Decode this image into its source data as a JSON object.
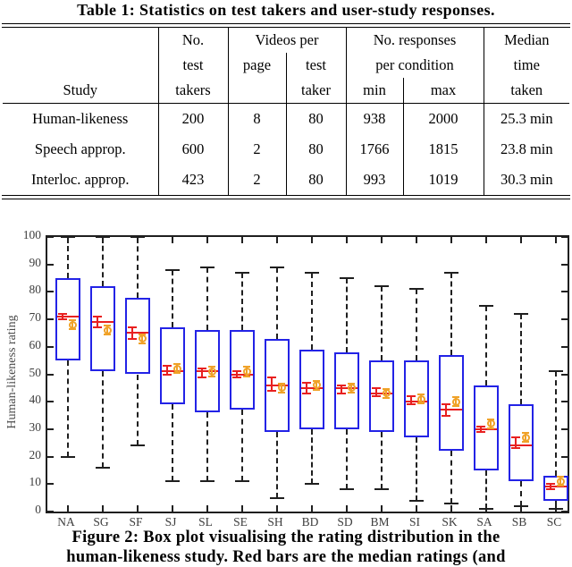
{
  "table": {
    "title": "Table 1: Statistics on test takers and user-study responses.",
    "header": {
      "study": "Study",
      "no_l1": "No.",
      "no_l2": "test",
      "no_l3": "takers",
      "videos_per": "Videos per",
      "page": "page",
      "test": "test",
      "taker": "taker",
      "resp_l1": "No. responses",
      "resp_l2": "per condition",
      "min": "min",
      "max": "max",
      "median_l1": "Median",
      "median_l2": "time",
      "median_l3": "taken"
    },
    "rows": [
      {
        "study": "Human-likeness",
        "takers": "200",
        "page": "8",
        "taker": "80",
        "min": "938",
        "max": "2000",
        "time": "25.3 min"
      },
      {
        "study": "Speech approp.",
        "takers": "600",
        "page": "2",
        "taker": "80",
        "min": "1766",
        "max": "1815",
        "time": "23.8 min"
      },
      {
        "study": "Interloc. approp.",
        "takers": "423",
        "page": "2",
        "taker": "80",
        "min": "993",
        "max": "1019",
        "time": "30.3 min"
      }
    ]
  },
  "figure_caption": {
    "line1": "Figure 2: Box plot visualising the rating distribution in the",
    "line2": "human-likeness study. Red bars are the median ratings (and"
  },
  "chart_data": {
    "type": "boxplot",
    "title": "",
    "xlabel": "",
    "ylabel": "Human-likeness rating",
    "ylim": [
      0,
      100
    ],
    "yticks": [
      0,
      10,
      20,
      30,
      40,
      50,
      60,
      70,
      80,
      90,
      100
    ],
    "grid": false,
    "legend": "none",
    "categories": [
      "NA",
      "SG",
      "SF",
      "SJ",
      "SL",
      "SE",
      "SH",
      "BD",
      "SD",
      "BM",
      "SI",
      "SK",
      "SA",
      "SB",
      "SC"
    ],
    "colors": {
      "box": "#2323e6",
      "median": "#e82020",
      "mean": "#f0a228",
      "whisker": "#1f1f1f"
    },
    "boxes": [
      {
        "label": "NA",
        "whisker_low": 20,
        "q1": 55,
        "median": 71,
        "median_ci": [
          70,
          72
        ],
        "q3": 85,
        "whisker_high": 100,
        "mean": 68,
        "mean_ci": [
          67,
          69
        ]
      },
      {
        "label": "SG",
        "whisker_low": 16,
        "q1": 51,
        "median": 69,
        "median_ci": [
          67,
          71
        ],
        "q3": 82,
        "whisker_high": 100,
        "mean": 66,
        "mean_ci": [
          65,
          67
        ]
      },
      {
        "label": "SF",
        "whisker_low": 24,
        "q1": 50,
        "median": 65,
        "median_ci": [
          63,
          67
        ],
        "q3": 78,
        "whisker_high": 100,
        "mean": 63,
        "mean_ci": [
          62,
          64
        ]
      },
      {
        "label": "SJ",
        "whisker_low": 11,
        "q1": 39,
        "median": 51,
        "median_ci": [
          50,
          53
        ],
        "q3": 67,
        "whisker_high": 88,
        "mean": 52,
        "mean_ci": [
          51,
          53
        ]
      },
      {
        "label": "SL",
        "whisker_low": 11,
        "q1": 36,
        "median": 51,
        "median_ci": [
          49,
          52
        ],
        "q3": 66,
        "whisker_high": 89,
        "mean": 51,
        "mean_ci": [
          50,
          52
        ]
      },
      {
        "label": "SE",
        "whisker_low": 11,
        "q1": 37,
        "median": 50,
        "median_ci": [
          49,
          51
        ],
        "q3": 66,
        "whisker_high": 87,
        "mean": 51,
        "mean_ci": [
          50,
          52
        ]
      },
      {
        "label": "SH",
        "whisker_low": 5,
        "q1": 29,
        "median": 46,
        "median_ci": [
          44,
          49
        ],
        "q3": 63,
        "whisker_high": 89,
        "mean": 45,
        "mean_ci": [
          44,
          46
        ]
      },
      {
        "label": "BD",
        "whisker_low": 10,
        "q1": 30,
        "median": 45,
        "median_ci": [
          43,
          47
        ],
        "q3": 59,
        "whisker_high": 87,
        "mean": 46,
        "mean_ci": [
          45,
          47
        ]
      },
      {
        "label": "SD",
        "whisker_low": 8,
        "q1": 30,
        "median": 45,
        "median_ci": [
          43,
          46
        ],
        "q3": 58,
        "whisker_high": 85,
        "mean": 45,
        "mean_ci": [
          44,
          46
        ]
      },
      {
        "label": "BM",
        "whisker_low": 8,
        "q1": 29,
        "median": 43,
        "median_ci": [
          42,
          45
        ],
        "q3": 55,
        "whisker_high": 82,
        "mean": 43,
        "mean_ci": [
          42,
          44
        ]
      },
      {
        "label": "SI",
        "whisker_low": 4,
        "q1": 27,
        "median": 40,
        "median_ci": [
          39,
          42
        ],
        "q3": 55,
        "whisker_high": 81,
        "mean": 41,
        "mean_ci": [
          40,
          42
        ]
      },
      {
        "label": "SK",
        "whisker_low": 3,
        "q1": 22,
        "median": 37,
        "median_ci": [
          35,
          39
        ],
        "q3": 57,
        "whisker_high": 87,
        "mean": 40,
        "mean_ci": [
          39,
          41
        ]
      },
      {
        "label": "SA",
        "whisker_low": 1,
        "q1": 15,
        "median": 30,
        "median_ci": [
          29,
          31
        ],
        "q3": 46,
        "whisker_high": 75,
        "mean": 32,
        "mean_ci": [
          31,
          33
        ]
      },
      {
        "label": "SB",
        "whisker_low": 2,
        "q1": 11,
        "median": 24,
        "median_ci": [
          23,
          27
        ],
        "q3": 39,
        "whisker_high": 72,
        "mean": 27,
        "mean_ci": [
          26,
          28
        ]
      },
      {
        "label": "SC",
        "whisker_low": 1,
        "q1": 4,
        "median": 9,
        "median_ci": [
          8,
          10
        ],
        "q3": 13,
        "whisker_high": 51,
        "mean": 11,
        "mean_ci": [
          10,
          12
        ]
      }
    ]
  }
}
